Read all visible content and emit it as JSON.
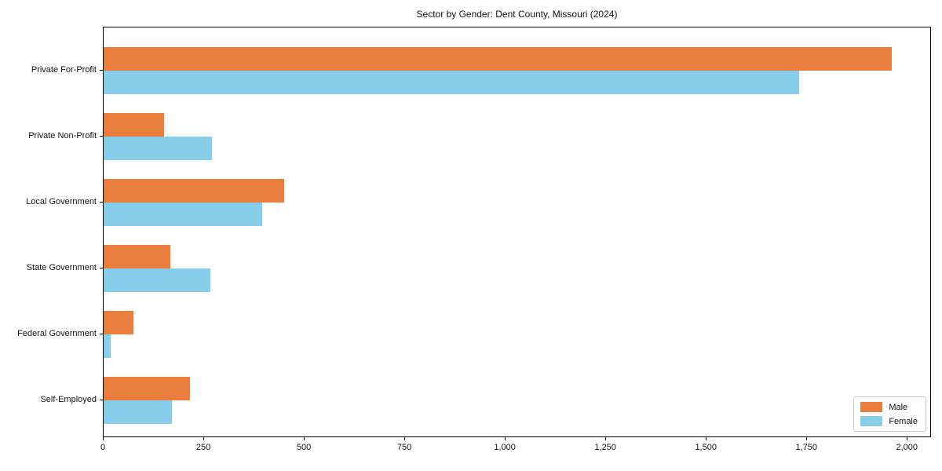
{
  "chart_data": {
    "type": "bar",
    "orientation": "horizontal",
    "title": "Sector by Gender: Dent County, Missouri (2024)",
    "xlabel": "",
    "ylabel": "",
    "categories": [
      "Private For-Profit",
      "Private Non-Profit",
      "Local Government",
      "State Government",
      "Federal Government",
      "Self-Employed"
    ],
    "series": [
      {
        "name": "Male",
        "color": "#E87D3E",
        "values": [
          1960,
          150,
          450,
          165,
          74,
          215
        ]
      },
      {
        "name": "Female",
        "color": "#87CEEB",
        "values": [
          1730,
          270,
          395,
          265,
          17,
          170
        ]
      }
    ],
    "xlim": [
      0,
      2060
    ],
    "xticks": [
      0,
      250,
      500,
      750,
      1000,
      1250,
      1500,
      1750,
      2000
    ],
    "xtick_labels": [
      "0",
      "250",
      "500",
      "750",
      "1,000",
      "1,250",
      "1,500",
      "1,750",
      "2,000"
    ],
    "grid": false,
    "legend": {
      "position": "lower right",
      "entries": [
        "Male",
        "Female"
      ]
    }
  }
}
